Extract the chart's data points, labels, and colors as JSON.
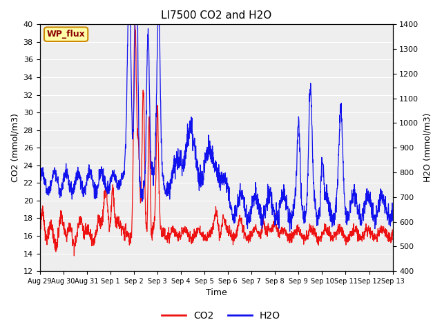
{
  "title": "LI7500 CO2 and H2O",
  "xlabel": "Time",
  "ylabel_left": "CO2 (mmol/m3)",
  "ylabel_right": "H2O (mmol/m3)",
  "ylim_left": [
    12,
    40
  ],
  "ylim_right": [
    400,
    1400
  ],
  "yticks_left": [
    12,
    14,
    16,
    18,
    20,
    22,
    24,
    26,
    28,
    30,
    32,
    34,
    36,
    38,
    40
  ],
  "yticks_right": [
    400,
    500,
    600,
    700,
    800,
    900,
    1000,
    1100,
    1200,
    1300,
    1400
  ],
  "xtick_labels": [
    "Aug 29",
    "Aug 30",
    "Aug 31",
    "Sep 1",
    "Sep 2",
    "Sep 3",
    "Sep 4",
    "Sep 5",
    "Sep 6",
    "Sep 7",
    "Sep 8",
    "Sep 9",
    "Sep 10",
    "Sep 11",
    "Sep 12",
    "Sep 13"
  ],
  "co2_color": "#EE1111",
  "h2o_color": "#1111EE",
  "background_color": "#ffffff",
  "plot_bg_color": "#eeeeee",
  "grid_color": "#ffffff",
  "legend_box_text": "WP_flux",
  "legend_box_bg": "#ffffaa",
  "legend_box_border": "#cc8800",
  "linewidth": 0.9,
  "title_fontsize": 11
}
